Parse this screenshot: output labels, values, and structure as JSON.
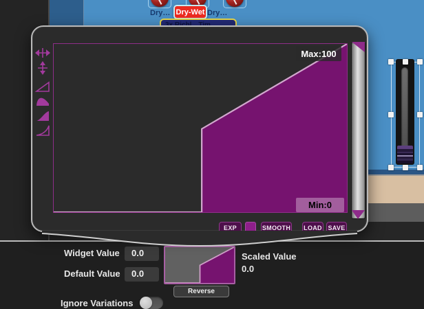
{
  "colors": {
    "accent_purple": "#8e2b8a",
    "curve_fill": "#76136f",
    "curve_stroke": "#d2a8ce",
    "canvas_blue": "#4a8fc5",
    "beige_band": "#d8bfa2",
    "popup_bg": "#2b2b2b",
    "badge_red": "#ec2b20"
  },
  "sidebar": {
    "glyph": ")"
  },
  "canvas": {
    "knob_label_left": "Dry…",
    "knob_label_right": "Dry…",
    "active_knob_label": "Dry-Wet",
    "preset_name": "3x Richl…Tim…"
  },
  "curve_editor": {
    "max_label": "Max:100",
    "min_label": "Min:0",
    "tools": [
      "move-horizontal",
      "move-vertical",
      "linear-curve",
      "log-curve",
      "exp-fill-curve",
      "exp-curve"
    ],
    "buttons": {
      "exp": "EXP",
      "smooth": "SMOOTH",
      "load": "LOAD",
      "save": "SAVE"
    },
    "curve": {
      "type": "area",
      "points": [
        [
          0,
          0
        ],
        [
          50.5,
          0
        ],
        [
          50.5,
          49.5
        ],
        [
          100,
          100
        ]
      ],
      "x_range": [
        0,
        100
      ],
      "y_range": [
        0,
        100
      ],
      "min": 0,
      "max": 100
    }
  },
  "properties": {
    "widget_value_label": "Widget Value",
    "widget_value": "0.0",
    "default_value_label": "Default Value",
    "default_value": "0.0",
    "scaled_value_label": "Scaled Value",
    "scaled_value": "0.0",
    "reverse_button": "Reverse",
    "ignore_variations_label": "Ignore Variations",
    "ignore_variations_on": false
  }
}
